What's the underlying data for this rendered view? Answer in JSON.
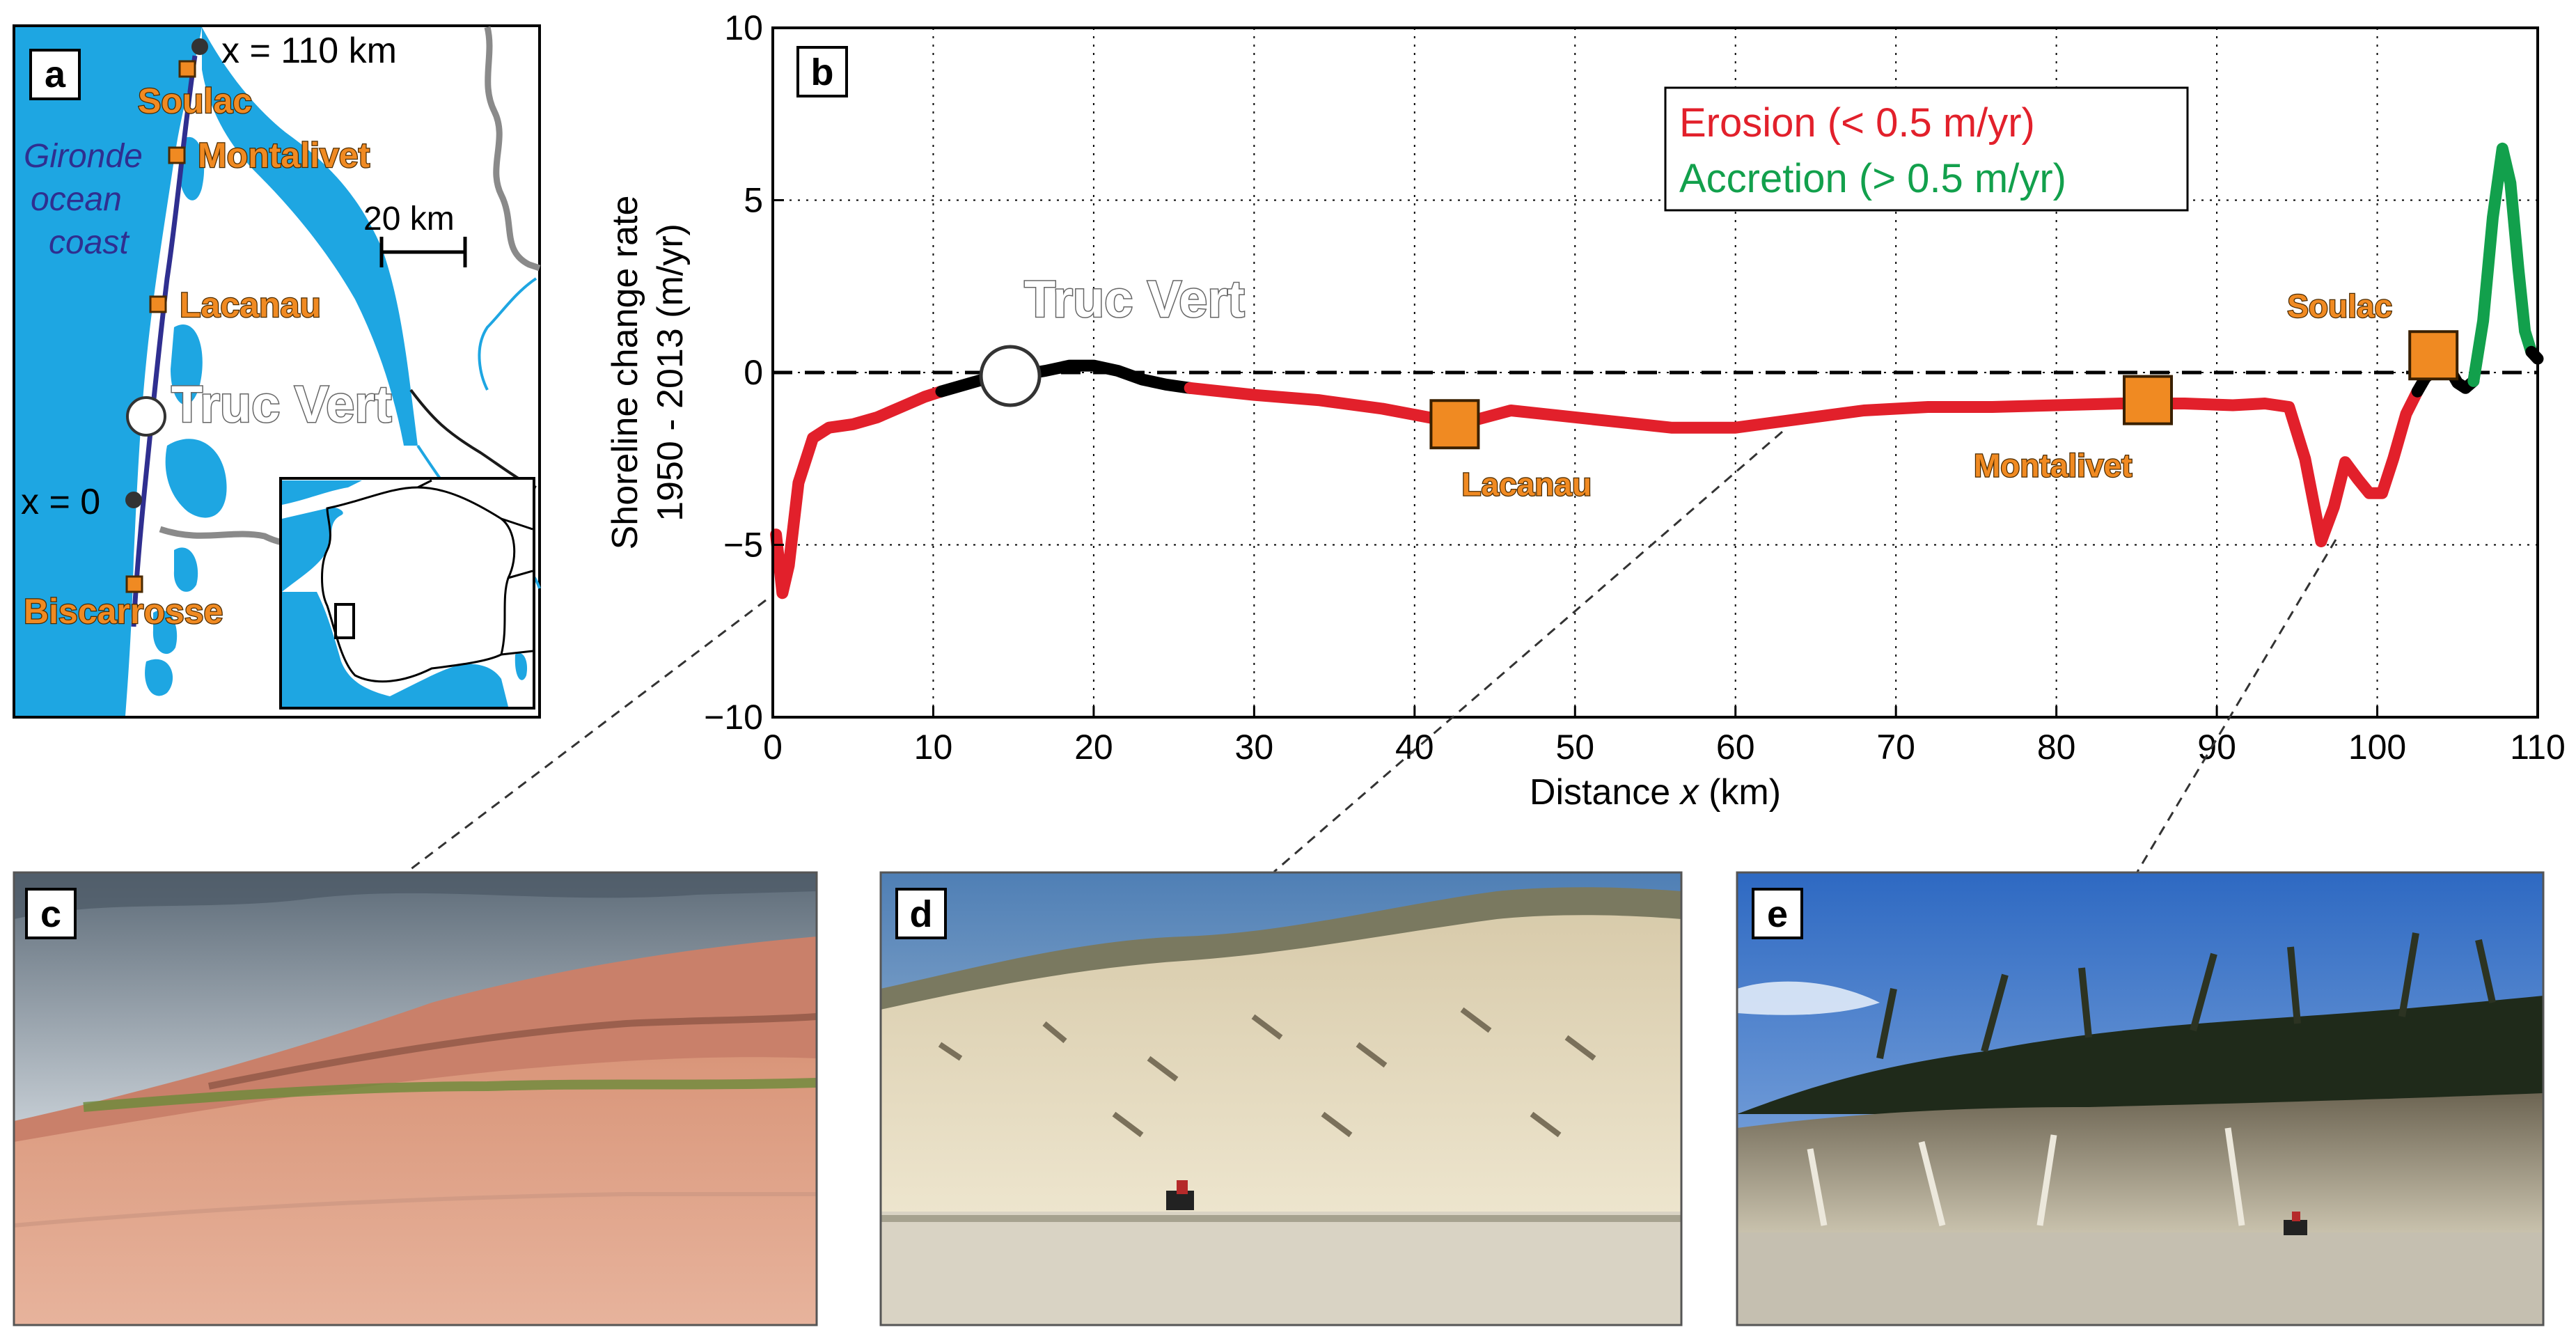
{
  "panel_labels": {
    "a": "a",
    "b": "b",
    "c": "c",
    "d": "d",
    "e": "e"
  },
  "map": {
    "x_end": "x = 110 km",
    "x_start": "x = 0",
    "scale_label": "20 km",
    "coast_label": [
      "Gironde",
      "ocean",
      "coast"
    ],
    "places": [
      "Soulac",
      "Montalivet",
      "Lacanau",
      "Truc Vert",
      "Biscarrosse"
    ]
  },
  "colors": {
    "erosion": "#e2202b",
    "accretion": "#12a04c",
    "stable": "#000000",
    "water": "#1ea6e2",
    "site_marker": "#f08a22",
    "coast_line": "#2f2f90"
  },
  "chart_data": {
    "type": "line",
    "xlabel_prefix": "Distance ",
    "xlabel_var": "x",
    "xlabel_suffix": " (km)",
    "ylabel": [
      "Shoreline change rate",
      "1950 - 2013 (m/yr)"
    ],
    "xlim": [
      0,
      110
    ],
    "ylim": [
      -10,
      10
    ],
    "xticks": [
      0,
      10,
      20,
      30,
      40,
      50,
      60,
      70,
      80,
      90,
      100,
      110
    ],
    "yticks": [
      -10,
      -5,
      0,
      5,
      10
    ],
    "grid": true,
    "legend_placement": "top-right",
    "legend": [
      {
        "label": "Erosion (< 0.5 m/yr)",
        "color": "#e2202b"
      },
      {
        "label": "Accretion (> 0.5 m/yr)",
        "color": "#12a04c"
      }
    ],
    "reference_line_y": 0,
    "series": [
      {
        "color": "#e2202b",
        "points": [
          [
            0.2,
            -4.7
          ],
          [
            0.6,
            -6.4
          ],
          [
            1.0,
            -5.6
          ],
          [
            1.6,
            -3.2
          ],
          [
            2.5,
            -1.9
          ],
          [
            3.5,
            -1.6
          ],
          [
            5,
            -1.5
          ],
          [
            6.5,
            -1.3
          ],
          [
            8,
            -1.0
          ],
          [
            9.5,
            -0.7
          ],
          [
            10.5,
            -0.55
          ]
        ]
      },
      {
        "color": "#000000",
        "points": [
          [
            10.5,
            -0.55
          ],
          [
            12,
            -0.35
          ],
          [
            13.5,
            -0.15
          ],
          [
            15,
            -0.1
          ],
          [
            17,
            0.05
          ],
          [
            18.5,
            0.2
          ],
          [
            20,
            0.2
          ],
          [
            21.5,
            0.05
          ],
          [
            23,
            -0.2
          ],
          [
            24.5,
            -0.35
          ],
          [
            26,
            -0.45
          ]
        ]
      },
      {
        "color": "#e2202b",
        "points": [
          [
            26,
            -0.45
          ],
          [
            30,
            -0.65
          ],
          [
            34,
            -0.8
          ],
          [
            38,
            -1.05
          ],
          [
            42,
            -1.4
          ],
          [
            44,
            -1.35
          ],
          [
            46,
            -1.1
          ],
          [
            48,
            -1.2
          ],
          [
            52,
            -1.4
          ],
          [
            56,
            -1.6
          ],
          [
            60,
            -1.6
          ],
          [
            64,
            -1.35
          ],
          [
            68,
            -1.1
          ],
          [
            72,
            -1.0
          ],
          [
            76,
            -1.0
          ],
          [
            80,
            -0.95
          ],
          [
            84,
            -0.9
          ],
          [
            88,
            -0.9
          ],
          [
            91,
            -0.95
          ],
          [
            93,
            -0.9
          ],
          [
            94.5,
            -1.0
          ],
          [
            95.5,
            -2.5
          ],
          [
            96.5,
            -4.9
          ],
          [
            97.3,
            -3.9
          ],
          [
            98,
            -2.6
          ],
          [
            98.8,
            -3.1
          ],
          [
            99.5,
            -3.5
          ],
          [
            100.3,
            -3.5
          ],
          [
            101,
            -2.5
          ],
          [
            101.8,
            -1.2
          ],
          [
            102.5,
            -0.55
          ]
        ]
      },
      {
        "color": "#000000",
        "points": [
          [
            102.5,
            -0.55
          ],
          [
            103,
            -0.15
          ],
          [
            103.5,
            0.05
          ],
          [
            104,
            0.2
          ],
          [
            104.5,
            0.1
          ],
          [
            105,
            -0.3
          ],
          [
            105.5,
            -0.45
          ],
          [
            106,
            -0.25
          ]
        ]
      },
      {
        "color": "#12a04c",
        "points": [
          [
            106,
            -0.25
          ],
          [
            106.6,
            1.5
          ],
          [
            107.2,
            4.5
          ],
          [
            107.8,
            6.5
          ],
          [
            108.3,
            5.5
          ],
          [
            108.8,
            3.0
          ],
          [
            109.2,
            1.2
          ],
          [
            109.6,
            0.6
          ]
        ]
      },
      {
        "color": "#000000",
        "points": [
          [
            109.6,
            0.6
          ],
          [
            110,
            0.4
          ]
        ]
      }
    ],
    "markers": [
      {
        "label": "Truc Vert",
        "shape": "circle",
        "x": 14.8,
        "y": -0.1,
        "label_pos": "above-right"
      },
      {
        "label": "Lacanau",
        "shape": "square",
        "x": 42.5,
        "y": -1.5,
        "label_pos": "below-right"
      },
      {
        "label": "Montalivet",
        "shape": "square",
        "x": 85.7,
        "y": -0.8,
        "label_pos": "below"
      },
      {
        "label": "Soulac",
        "shape": "square",
        "x": 103.5,
        "y": 0.5,
        "label_pos": "above-left"
      }
    ]
  }
}
